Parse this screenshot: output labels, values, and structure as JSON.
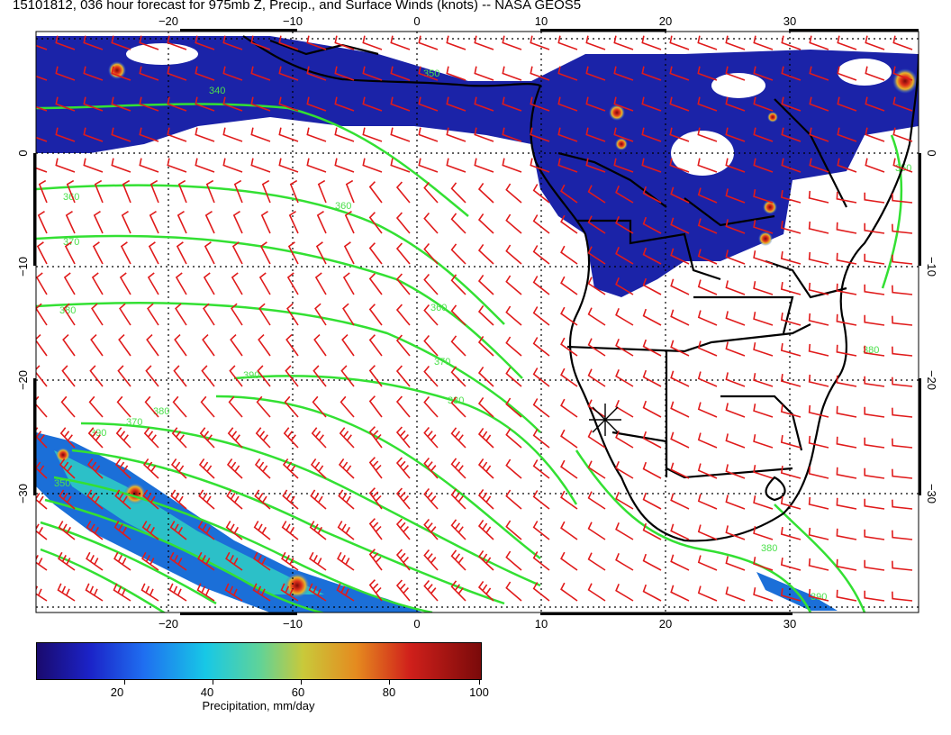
{
  "title": "15101812, 036 hour forecast for 975mb Z, Precip., and Surface Winds (knots) -- NASA GEOS5",
  "map": {
    "lon_ticks_bottom": [
      "−20",
      "−10",
      "0",
      "10",
      "20",
      "30"
    ],
    "lon_ticks_top": [
      "−20",
      "−10",
      "0",
      "10",
      "20",
      "30"
    ],
    "lat_ticks_left": [
      "0",
      "−10",
      "−20",
      "−30"
    ],
    "lat_ticks_right": [
      "0",
      "−10",
      "−20",
      "−30"
    ],
    "contour_labels": [
      "360",
      "370",
      "380",
      "360",
      "370",
      "380",
      "390",
      "380",
      "370",
      "360",
      "350",
      "350",
      "340",
      "390",
      "350",
      "380",
      "380",
      "390"
    ],
    "colors": {
      "contour": "#33e033",
      "wind_barb": "#e01b1b",
      "coast": "#000000",
      "precip_low": "#1b23c8"
    }
  },
  "colorbar": {
    "ticks": [
      "20",
      "40",
      "60",
      "80",
      "100"
    ],
    "label": "Precipitation, mm/day",
    "range": [
      0,
      100
    ]
  }
}
